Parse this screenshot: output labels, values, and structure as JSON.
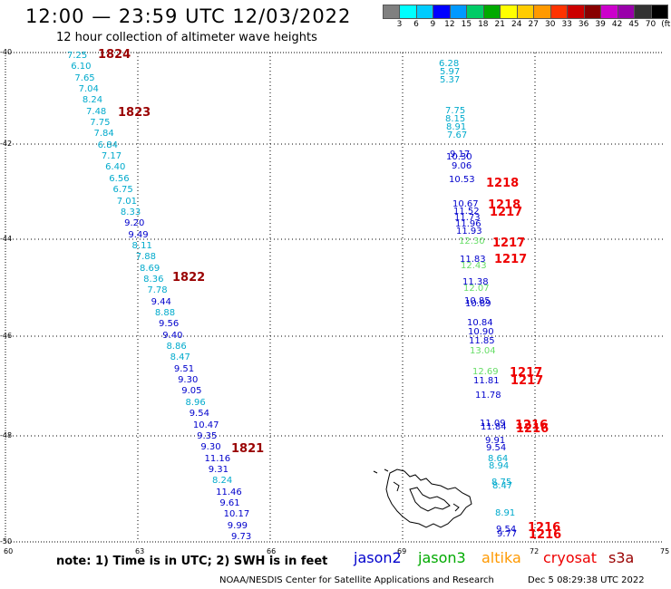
{
  "title": "12:00 — 23:59 UTC 12/03/2022",
  "subtitle": "12 hour collection of altimeter wave heights",
  "colorbar": {
    "colors": [
      "#808080",
      "#00ffff",
      "#00ccff",
      "#0000ff",
      "#0099ff",
      "#00cc66",
      "#00aa00",
      "#ffff00",
      "#ffcc00",
      "#ff9900",
      "#ff3300",
      "#cc0000",
      "#880000",
      "#cc00cc",
      "#9900aa",
      "#333333",
      "#000000"
    ],
    "labels": [
      "3",
      "6",
      "9",
      "12",
      "15",
      "18",
      "21",
      "24",
      "27",
      "30",
      "33",
      "36",
      "39",
      "42",
      "45",
      "70",
      "(ft)"
    ]
  },
  "axes": {
    "lat_ticks": [
      "-40",
      "-42",
      "-44",
      "-46",
      "-48",
      "-50"
    ],
    "lon_ticks": [
      "60",
      "63",
      "66",
      "69",
      "72",
      "75"
    ]
  },
  "satellite_colors": {
    "jason2": "#0000cc",
    "jason3": "#00aa00",
    "altika": "#ff9900",
    "cryosat": "#ee0000",
    "s3a": "#990000",
    "obs_cyan": "#00aacc",
    "obs_light": "#66dd66",
    "obs_blue": "#0000cc"
  },
  "track_west": [
    {
      "v": "7.25",
      "c": "obs_cyan"
    },
    {
      "v": "6.10",
      "c": "obs_cyan"
    },
    {
      "v": "7.65",
      "c": "obs_cyan"
    },
    {
      "v": "7.04",
      "c": "obs_cyan"
    },
    {
      "v": "8.24",
      "c": "obs_cyan"
    },
    {
      "v": "7.48",
      "c": "obs_cyan"
    },
    {
      "v": "7.75",
      "c": "obs_cyan"
    },
    {
      "v": "7.84",
      "c": "obs_cyan"
    },
    {
      "v": "6.84",
      "c": "obs_cyan"
    },
    {
      "v": "7.17",
      "c": "obs_cyan"
    },
    {
      "v": "6.40",
      "c": "obs_cyan"
    },
    {
      "v": "6.56",
      "c": "obs_cyan"
    },
    {
      "v": "6.75",
      "c": "obs_cyan"
    },
    {
      "v": "7.01",
      "c": "obs_cyan"
    },
    {
      "v": "8.33",
      "c": "obs_cyan"
    },
    {
      "v": "9.20",
      "c": "obs_blue"
    },
    {
      "v": "9.49",
      "c": "obs_blue"
    },
    {
      "v": "8.11",
      "c": "obs_cyan"
    },
    {
      "v": "7.88",
      "c": "obs_cyan"
    },
    {
      "v": "8.69",
      "c": "obs_cyan"
    },
    {
      "v": "8.36",
      "c": "obs_cyan"
    },
    {
      "v": "7.78",
      "c": "obs_cyan"
    },
    {
      "v": "9.44",
      "c": "obs_blue"
    },
    {
      "v": "8.88",
      "c": "obs_cyan"
    },
    {
      "v": "9.56",
      "c": "obs_blue"
    },
    {
      "v": "9.40",
      "c": "obs_blue"
    },
    {
      "v": "8.86",
      "c": "obs_cyan"
    },
    {
      "v": "8.47",
      "c": "obs_cyan"
    },
    {
      "v": "9.51",
      "c": "obs_blue"
    },
    {
      "v": "9.30",
      "c": "obs_blue"
    },
    {
      "v": "9.05",
      "c": "obs_blue"
    },
    {
      "v": "8.96",
      "c": "obs_cyan"
    },
    {
      "v": "9.54",
      "c": "obs_blue"
    },
    {
      "v": "10.47",
      "c": "obs_blue"
    },
    {
      "v": "9.35",
      "c": "obs_blue"
    },
    {
      "v": "9.30",
      "c": "obs_blue"
    },
    {
      "v": "11.16",
      "c": "obs_blue"
    },
    {
      "v": "9.31",
      "c": "obs_blue"
    },
    {
      "v": "8.24",
      "c": "obs_cyan"
    },
    {
      "v": "11.46",
      "c": "obs_blue"
    },
    {
      "v": "9.61",
      "c": "obs_blue"
    },
    {
      "v": "10.17",
      "c": "obs_blue"
    },
    {
      "v": "9.99",
      "c": "obs_blue"
    },
    {
      "v": "9.73",
      "c": "obs_blue"
    }
  ],
  "west_times": [
    {
      "t": "1824",
      "c": "s3a"
    },
    {
      "t": "1823",
      "c": "s3a"
    },
    {
      "t": "1822",
      "c": "s3a"
    },
    {
      "t": "1821",
      "c": "s3a"
    }
  ],
  "track_east": [
    {
      "v": "6.28",
      "c": "obs_cyan"
    },
    {
      "v": "5.97",
      "c": "obs_cyan"
    },
    {
      "v": "5.37",
      "c": "obs_cyan"
    },
    {
      "v": "7.75",
      "c": "obs_cyan"
    },
    {
      "v": "8.15",
      "c": "obs_cyan"
    },
    {
      "v": "8.91",
      "c": "obs_cyan"
    },
    {
      "v": "7.67",
      "c": "obs_cyan"
    },
    {
      "v": "9.17",
      "c": "obs_blue"
    },
    {
      "v": "10.30",
      "c": "obs_blue"
    },
    {
      "v": "9.06",
      "c": "obs_blue"
    },
    {
      "v": "10.53",
      "c": "obs_blue"
    },
    {
      "v": "10.67",
      "c": "obs_blue"
    },
    {
      "v": "11.52",
      "c": "obs_blue"
    },
    {
      "v": "11.73",
      "c": "obs_blue"
    },
    {
      "v": "11.96",
      "c": "obs_blue"
    },
    {
      "v": "11.93",
      "c": "obs_blue"
    },
    {
      "v": "12.30",
      "c": "obs_light"
    },
    {
      "v": "11.83",
      "c": "obs_blue"
    },
    {
      "v": "12.43",
      "c": "obs_light"
    },
    {
      "v": "11.38",
      "c": "obs_blue"
    },
    {
      "v": "12.07",
      "c": "obs_light"
    },
    {
      "v": "10.85",
      "c": "obs_blue"
    },
    {
      "v": "10.89",
      "c": "obs_blue"
    },
    {
      "v": "10.84",
      "c": "obs_blue"
    },
    {
      "v": "10.90",
      "c": "obs_blue"
    },
    {
      "v": "11.85",
      "c": "obs_blue"
    },
    {
      "v": "13.04",
      "c": "obs_light"
    },
    {
      "v": "12.69",
      "c": "obs_light"
    },
    {
      "v": "11.81",
      "c": "obs_blue"
    },
    {
      "v": "11.78",
      "c": "obs_blue"
    },
    {
      "v": "11.09",
      "c": "obs_blue"
    },
    {
      "v": "11.84",
      "c": "obs_blue"
    },
    {
      "v": "9.91",
      "c": "obs_blue"
    },
    {
      "v": "9.54",
      "c": "obs_blue"
    },
    {
      "v": "8.64",
      "c": "obs_cyan"
    },
    {
      "v": "8.94",
      "c": "obs_cyan"
    },
    {
      "v": "8.75",
      "c": "obs_cyan"
    },
    {
      "v": "8.47",
      "c": "obs_cyan"
    },
    {
      "v": "8.91",
      "c": "obs_cyan"
    },
    {
      "v": "9.54",
      "c": "obs_blue"
    },
    {
      "v": "9.77",
      "c": "obs_blue"
    }
  ],
  "east_times": [
    {
      "t": "1218",
      "c": "cryosat"
    },
    {
      "t": "1218",
      "c": "cryosat"
    },
    {
      "t": "1217",
      "c": "cryosat"
    },
    {
      "t": "1217",
      "c": "cryosat"
    },
    {
      "t": "1217",
      "c": "cryosat"
    },
    {
      "t": "1217",
      "c": "cryosat"
    },
    {
      "t": "1217",
      "c": "cryosat"
    },
    {
      "t": "1216",
      "c": "cryosat"
    },
    {
      "t": "1216",
      "c": "cryosat"
    },
    {
      "t": "1216",
      "c": "cryosat"
    },
    {
      "t": "1216",
      "c": "cryosat"
    }
  ],
  "note": "note:  1) Time is in UTC; 2) SWH is in feet",
  "legend": [
    {
      "name": "jason2",
      "c": "jason2"
    },
    {
      "name": "jason3",
      "c": "jason3"
    },
    {
      "name": "altika",
      "c": "altika"
    },
    {
      "name": "cryosat",
      "c": "cryosat"
    },
    {
      "name": "s3a",
      "c": "s3a"
    }
  ],
  "footer_left": "NOAA/NESDIS Center for Satellite Applications and Research",
  "footer_right": "Dec  5 08:29:38 UTC 2022"
}
